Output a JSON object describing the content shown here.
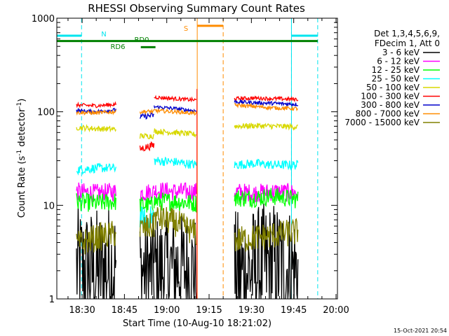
{
  "chart_data": {
    "type": "line",
    "title": "RHESSI Observing Summary Count Rates",
    "xlabel": "Start Time (10-Aug-10 18:21:02)",
    "ylabel_main": "Count Rate (s",
    "ylabel_sup1": "-1",
    "ylabel_mid": " detector",
    "ylabel_sup2": "-1",
    "ylabel_end": ")",
    "timestamp": "15-Oct-2021 20:54",
    "y_scale": "log",
    "ylim": [
      1,
      1000
    ],
    "xlim": [
      "18:21:02",
      "20:00:30"
    ],
    "x_ticks": [
      {
        "label": "18:30",
        "t": 1110
      },
      {
        "label": "18:45",
        "t": 1125
      },
      {
        "label": "19:00",
        "t": 1140
      },
      {
        "label": "19:15",
        "t": 1155
      },
      {
        "label": "19:30",
        "t": 1170
      },
      {
        "label": "19:45",
        "t": 1185
      },
      {
        "label": "20:00",
        "t": 1200
      }
    ],
    "y_ticks": [
      {
        "label": "1",
        "v": 1
      },
      {
        "label": "10",
        "v": 10
      },
      {
        "label": "100",
        "v": 100
      },
      {
        "label": "1000",
        "v": 1000
      }
    ],
    "legend_header": [
      "Det 1,3,4,5,6,9,",
      "FDecim 1, Att 0"
    ],
    "legend_position": "right",
    "flags": [
      {
        "label": "N",
        "color": "#00e5ee",
        "segments": [
          [
            1101.0,
            1109.8
          ],
          [
            1184.2,
            1193.5
          ]
        ],
        "value": 650,
        "bounds": [
          1109.8,
          1184.2,
          1193.5
        ],
        "bound_style": "dashed"
      },
      {
        "label": "S",
        "color": "#ff8c00",
        "segments": [
          [
            1150.8,
            1160.0
          ]
        ],
        "value": 830,
        "bounds": [
          1150.8,
          1160.0
        ],
        "bound_style": "mixed"
      },
      {
        "label": "RD0",
        "color": "#008000",
        "segments": [
          [
            1101.0,
            1193.5
          ]
        ],
        "value": 570
      },
      {
        "label": "RD6",
        "color": "#008000",
        "segments": [
          [
            1130.8,
            1136.0
          ]
        ],
        "value": 490
      }
    ],
    "series": [
      {
        "name": "3 - 6 keV",
        "color": "#000000",
        "segments": [
          {
            "t": [
              1108.0,
              1115.0,
              1122.0
            ],
            "v": [
              2.1,
              1.9,
              2.3
            ],
            "noise": 0.7,
            "min": 1
          },
          {
            "t": [
              1130.5,
              1135.5
            ],
            "v": [
              2.0,
              2.0
            ],
            "noise": 0.6,
            "min": 1
          },
          {
            "t": [
              1135.5,
              1143.0,
              1150.5
            ],
            "v": [
              2.0,
              2.2,
              2.0
            ],
            "noise": 0.6,
            "min": 1
          },
          {
            "t": [
              1164.0,
              1171.0,
              1178.0,
              1186.5
            ],
            "v": [
              1.8,
              2.0,
              2.3,
              2.0
            ],
            "noise": 0.7,
            "min": 1
          }
        ]
      },
      {
        "name": "6 - 12 keV",
        "color": "#ff00ff",
        "segments": [
          {
            "t": [
              1108.0,
              1115.0,
              1122.0
            ],
            "v": [
              14,
              13.5,
              14
            ],
            "noise": 0.1
          },
          {
            "t": [
              1130.5,
              1135.5
            ],
            "v": [
              13.5,
              14
            ],
            "noise": 0.1
          },
          {
            "t": [
              1135.5,
              1143.0,
              1150.5
            ],
            "v": [
              14.5,
              14,
              14
            ],
            "noise": 0.1
          },
          {
            "t": [
              1164.0,
              1171.0,
              1178.0,
              1186.5
            ],
            "v": [
              14,
              13.5,
              14,
              13.5
            ],
            "noise": 0.1
          }
        ]
      },
      {
        "name": "12 - 25 keV",
        "color": "#00ff00",
        "segments": [
          {
            "t": [
              1108.0,
              1115.0,
              1122.0
            ],
            "v": [
              11,
              10.5,
              11
            ],
            "noise": 0.1
          },
          {
            "t": [
              1130.5,
              1135.5
            ],
            "v": [
              10,
              10
            ],
            "noise": 0.1
          },
          {
            "t": [
              1135.5,
              1143.0,
              1150.5
            ],
            "v": [
              11,
              11,
              10.5
            ],
            "noise": 0.1
          },
          {
            "t": [
              1164.0,
              1171.0,
              1178.0,
              1186.5
            ],
            "v": [
              12,
              12,
              12.5,
              11.5
            ],
            "noise": 0.1
          }
        ]
      },
      {
        "name": "25 - 50 keV",
        "color": "#00ffff",
        "segments": [
          {
            "t": [
              1108.0,
              1115.0,
              1122.0
            ],
            "v": [
              24,
              25,
              25
            ],
            "noise": 0.05
          },
          {
            "t": [
              1130.5,
              1133.0,
              1135.5
            ],
            "v": [
              7.5,
              7.0,
              8.0
            ],
            "noise": 0.12
          },
          {
            "t": [
              1135.5,
              1143.0,
              1150.5
            ],
            "v": [
              30,
              29,
              27
            ],
            "noise": 0.05
          },
          {
            "t": [
              1164.0,
              1171.0,
              1178.0,
              1186.5
            ],
            "v": [
              27,
              28,
              27,
              27
            ],
            "noise": 0.05
          }
        ]
      },
      {
        "name": "50 - 100 keV",
        "color": "#d8d800",
        "segments": [
          {
            "t": [
              1108.0,
              1115.0,
              1122.0
            ],
            "v": [
              68,
              66,
              65
            ],
            "noise": 0.03
          },
          {
            "t": [
              1130.5,
              1135.5
            ],
            "v": [
              55,
              55
            ],
            "noise": 0.03
          },
          {
            "t": [
              1135.5,
              1143.0,
              1150.5
            ],
            "v": [
              62,
              60,
              57
            ],
            "noise": 0.03
          },
          {
            "t": [
              1164.0,
              1171.0,
              1178.0,
              1186.5
            ],
            "v": [
              70,
              71,
              70,
              69
            ],
            "noise": 0.03
          }
        ]
      },
      {
        "name": "100 - 300 keV",
        "color": "#ff0000",
        "segments": [
          {
            "t": [
              1108.0,
              1115.0,
              1122.0
            ],
            "v": [
              118,
              116,
              120
            ],
            "noise": 0.02
          },
          {
            "t": [
              1130.5,
              1135.5
            ],
            "v": [
              40,
              44
            ],
            "noise": 0.04
          },
          {
            "t": [
              1135.5,
              1143.0,
              1150.5
            ],
            "v": [
              143,
              138,
              133
            ],
            "noise": 0.02
          },
          {
            "t": [
              1164.0,
              1171.0,
              1178.0,
              1186.5
            ],
            "v": [
              138,
              140,
              138,
              136
            ],
            "noise": 0.02
          }
        ]
      },
      {
        "name": "300 - 800 keV",
        "color": "#0000cc",
        "segments": [
          {
            "t": [
              1108.0,
              1115.0,
              1122.0
            ],
            "v": [
              103,
              100,
              105
            ],
            "noise": 0.02
          },
          {
            "t": [
              1130.5,
              1135.5
            ],
            "v": [
              88,
              92
            ],
            "noise": 0.03
          },
          {
            "t": [
              1135.5,
              1143.0,
              1150.5
            ],
            "v": [
              113,
              108,
              102
            ],
            "noise": 0.02
          },
          {
            "t": [
              1164.0,
              1171.0,
              1178.0,
              1186.5
            ],
            "v": [
              128,
              125,
              123,
              120
            ],
            "noise": 0.02
          }
        ]
      },
      {
        "name": "800 - 7000 keV",
        "color": "#ff8c00",
        "segments": [
          {
            "t": [
              1108.0,
              1115.0,
              1122.0
            ],
            "v": [
              98,
              97,
              100
            ],
            "noise": 0.02
          },
          {
            "t": [
              1130.5,
              1135.5
            ],
            "v": [
              100,
              101
            ],
            "noise": 0.02
          },
          {
            "t": [
              1135.5,
              1143.0,
              1150.5
            ],
            "v": [
              103,
              100,
              96
            ],
            "noise": 0.02
          },
          {
            "t": [
              1164.0,
              1171.0,
              1178.0,
              1186.5
            ],
            "v": [
              118,
              114,
              110,
              108
            ],
            "noise": 0.02
          }
        ]
      },
      {
        "name": "7000 - 15000 keV",
        "color": "#808000",
        "segments": [
          {
            "t": [
              1108.0,
              1115.0,
              1122.0
            ],
            "v": [
              3.8,
              4.5,
              5.0
            ],
            "noise": 0.15
          },
          {
            "t": [
              1130.5,
              1135.5
            ],
            "v": [
              5.5,
              6.0
            ],
            "noise": 0.15
          },
          {
            "t": [
              1135.5,
              1143.0,
              1150.5
            ],
            "v": [
              7.5,
              6.5,
              5.0
            ],
            "noise": 0.15
          },
          {
            "t": [
              1164.0,
              1171.0,
              1178.0,
              1186.5
            ],
            "v": [
              4.2,
              4.5,
              4.8,
              5.2
            ],
            "noise": 0.15
          }
        ]
      }
    ]
  }
}
